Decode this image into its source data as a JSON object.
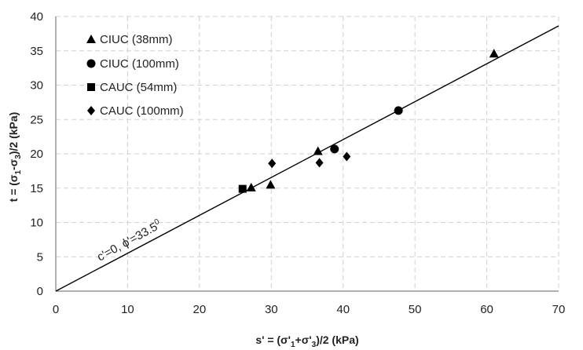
{
  "chart_data": {
    "type": "scatter",
    "title": "",
    "xlabel": "s' = (σ'1+σ'3)/2 (kPa)",
    "ylabel": "t = (σ1-σ3)/2 (kPa)",
    "xlabel_parts": {
      "a": "s' = (σ'",
      "s1": "1",
      "b": "+σ'",
      "s3": "3",
      "c": ")/2 (kPa)"
    },
    "ylabel_parts": {
      "a": "t = (σ",
      "s1": "1",
      "b": "-σ",
      "s3": "3",
      "c": ")/2 (kPa)"
    },
    "xlim": [
      0,
      70
    ],
    "ylim": [
      0,
      40
    ],
    "xticks": [
      "0",
      "10",
      "20",
      "30",
      "40",
      "50",
      "60",
      "70"
    ],
    "yticks": [
      "0",
      "5",
      "10",
      "15",
      "20",
      "25",
      "30",
      "35",
      "40"
    ],
    "grid": true,
    "legend_position": "top-left",
    "series": [
      {
        "name": "CIUC (38mm)",
        "marker": "triangle",
        "points": [
          [
            27.2,
            15.1
          ],
          [
            29.9,
            15.5
          ],
          [
            36.5,
            20.4
          ],
          [
            61.0,
            34.6
          ]
        ]
      },
      {
        "name": "CIUC (100mm)",
        "marker": "circle",
        "points": [
          [
            38.8,
            20.7
          ],
          [
            47.7,
            26.3
          ]
        ]
      },
      {
        "name": "CAUC (54mm)",
        "marker": "square",
        "points": [
          [
            26.0,
            14.9
          ]
        ]
      },
      {
        "name": "CAUC (100mm)",
        "marker": "diamond",
        "points": [
          [
            30.1,
            18.6
          ],
          [
            36.7,
            18.7
          ],
          [
            40.5,
            19.6
          ]
        ]
      }
    ],
    "fit_line": {
      "slope": 0.5519,
      "intercept": 0,
      "x_range": [
        0,
        70
      ]
    },
    "annotation": "c'=0, ϕ'=33.5",
    "annotation_parts": {
      "a": "c'=0, ϕ'=33.5",
      "sup": "0"
    },
    "colors": {
      "marker": "#000000",
      "grid": "#d0d0d0",
      "axis": "#7f7f7f",
      "line": "#000000"
    }
  }
}
